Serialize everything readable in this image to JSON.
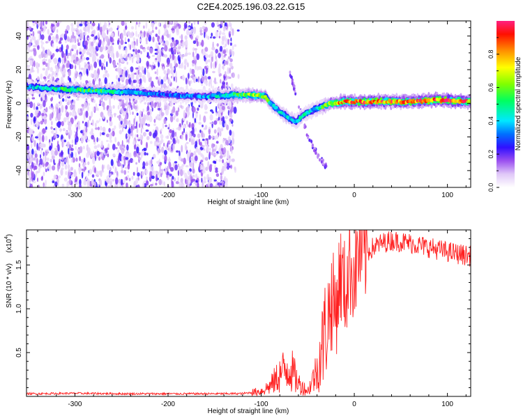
{
  "title": "C2E4.2025.196.03.22.G15",
  "chart_data": [
    {
      "type": "heatmap",
      "xlabel": "Height of straight line (km)",
      "ylabel": "Frequency (Hz)",
      "xlim": [
        -352,
        125
      ],
      "ylim": [
        -50,
        49
      ],
      "xticks": [
        -300,
        -200,
        -100,
        0,
        100
      ],
      "yticks": [
        -40,
        -20,
        0,
        20,
        40
      ],
      "colorbar": {
        "label": "Normalized spectral amplitude",
        "range": [
          0,
          1
        ],
        "ticks": [
          0.0,
          0.2,
          0.4,
          0.6,
          0.8
        ],
        "tick_labels": [
          "0.0",
          "0.2",
          "0.4",
          "0.6",
          "0.8"
        ],
        "colormap": [
          "#ffffff",
          "#cfa8f0",
          "#7a2ff0",
          "#0000ff",
          "#00ffff",
          "#00ff00",
          "#ffff00",
          "#ff8000",
          "#ff0000",
          "#ff00a0"
        ]
      },
      "ridge": {
        "x": [
          -352,
          -330,
          -300,
          -270,
          -240,
          -200,
          -160,
          -130,
          -110,
          -95,
          -90,
          -80,
          -70,
          -62,
          -55,
          -45,
          -35,
          -25,
          -20,
          -10,
          0,
          30,
          60,
          90,
          125
        ],
        "y": [
          10,
          9,
          8,
          7,
          6.5,
          5,
          4,
          5,
          5,
          4,
          0,
          -5,
          -9,
          -11,
          -7,
          -4,
          -2,
          0,
          0,
          1,
          1,
          1,
          1,
          2,
          1
        ],
        "peak_amplitude": [
          0.35,
          0.45,
          0.55,
          0.5,
          0.4,
          0.3,
          0.35,
          0.5,
          0.65,
          0.6,
          0.45,
          0.4,
          0.45,
          0.4,
          0.45,
          0.4,
          0.5,
          0.7,
          0.8,
          0.85,
          0.85,
          0.85,
          0.85,
          0.9,
          0.85
        ]
      },
      "noise_region_x": [
        -352,
        -130
      ],
      "secondary_trace": {
        "x": [
          -70,
          -65,
          -60,
          -50,
          -40,
          -30
        ],
        "y": [
          20,
          10,
          0,
          -20,
          -30,
          -38
        ]
      }
    },
    {
      "type": "line",
      "xlabel": "Height of straight line (km)",
      "ylabel": "SNR (10 * v/v)",
      "multiplier_label": "(x10",
      "multiplier_exponent": "4",
      "xlim": [
        -352,
        125
      ],
      "ylim": [
        0,
        19000
      ],
      "xticks": [
        -300,
        -200,
        -100,
        0,
        100
      ],
      "yticks": [
        5000,
        10000,
        15000
      ],
      "ytick_labels": [
        "0.5",
        "1.0",
        "1.5"
      ],
      "color": "#ff2020",
      "series": [
        {
          "x": [
            -352,
            -300,
            -250,
            -200,
            -150,
            -120,
            -100,
            -90,
            -80,
            -70,
            -60,
            -50,
            -40,
            -30,
            -25,
            -20,
            -15,
            -10,
            -5,
            0,
            5,
            10,
            20,
            30,
            40,
            60,
            80,
            100,
            115,
            125
          ],
          "y": [
            300,
            350,
            300,
            300,
            300,
            320,
            600,
            1200,
            2500,
            3500,
            1500,
            600,
            3000,
            8000,
            11000,
            10000,
            14000,
            12000,
            15000,
            14000,
            16500,
            16000,
            17000,
            17500,
            17800,
            17500,
            17000,
            16500,
            16200,
            16000
          ]
        }
      ]
    }
  ]
}
